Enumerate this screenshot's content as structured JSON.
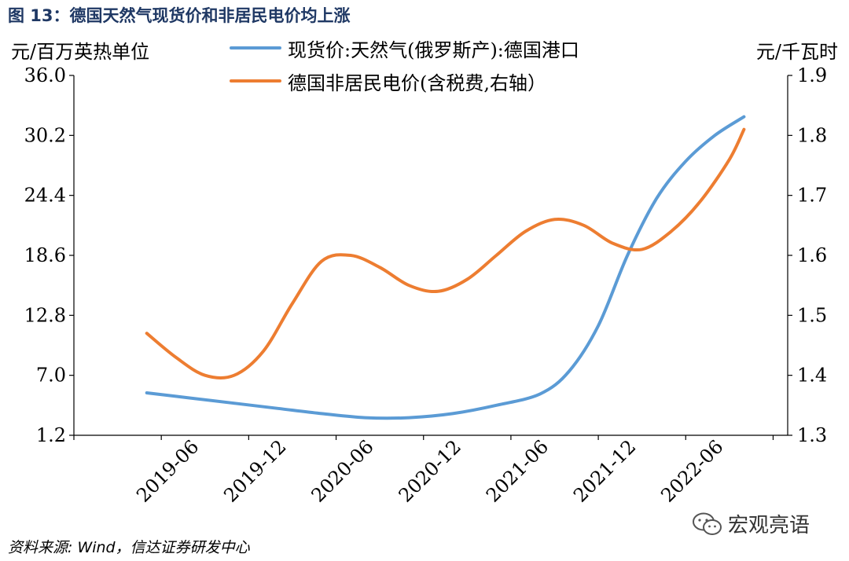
{
  "figure": {
    "title": "图 13：德国天然气现货价和非居民电价均上涨",
    "source": "资料来源: Wind，信达证券研发中心",
    "watermark": "宏观亮语",
    "watermark_icon": "wechat-icon"
  },
  "chart_data": {
    "type": "line",
    "title": "图 13：德国天然气现货价和非居民电价均上涨",
    "ylabel_left": "元/百万英热单位",
    "ylabel_right": "元/千瓦时",
    "yticks_left": [
      "36.0",
      "30.2",
      "24.4",
      "18.6",
      "12.8",
      "7.0",
      "1.2"
    ],
    "yticks_right": [
      "1.9",
      "1.8",
      "1.7",
      "1.6",
      "1.5",
      "1.4",
      "1.3"
    ],
    "ylim_left": [
      1.2,
      36.0
    ],
    "ylim_right": [
      1.3,
      1.9
    ],
    "x_tick_labels": [
      "2019-06",
      "2019-12",
      "2020-06",
      "2020-12",
      "2021-06",
      "2021-12",
      "2022-06"
    ],
    "x_tick_positions": [
      0,
      6,
      12,
      18,
      24,
      30,
      36
    ],
    "legend_position": "top-center",
    "grid": false,
    "series": [
      {
        "name": "现货价:天然气(俄罗斯产):德国港口",
        "axis": "left",
        "color": "#5b9bd5",
        "x": [
          -3,
          0,
          3,
          6,
          9,
          12,
          15,
          18,
          21,
          24,
          26,
          28,
          30,
          32,
          34,
          36,
          38
        ],
        "values": [
          5.3,
          4.8,
          4.3,
          3.8,
          3.3,
          2.9,
          2.9,
          3.3,
          4.1,
          5.2,
          7.4,
          11.8,
          18.6,
          24.1,
          27.7,
          30.2,
          32.0
        ]
      },
      {
        "name": "德国非居民电价(含税费,右轴）",
        "axis": "right",
        "color": "#ed7d31",
        "x": [
          -3,
          -1,
          1,
          3,
          5,
          7,
          9,
          11,
          13,
          15,
          17,
          19,
          21,
          23,
          25,
          27,
          29,
          31,
          33,
          35,
          37,
          38
        ],
        "values": [
          1.47,
          1.43,
          1.4,
          1.4,
          1.44,
          1.52,
          1.59,
          1.6,
          1.58,
          1.55,
          1.54,
          1.56,
          1.6,
          1.64,
          1.66,
          1.65,
          1.62,
          1.61,
          1.64,
          1.69,
          1.76,
          1.81
        ]
      }
    ]
  }
}
